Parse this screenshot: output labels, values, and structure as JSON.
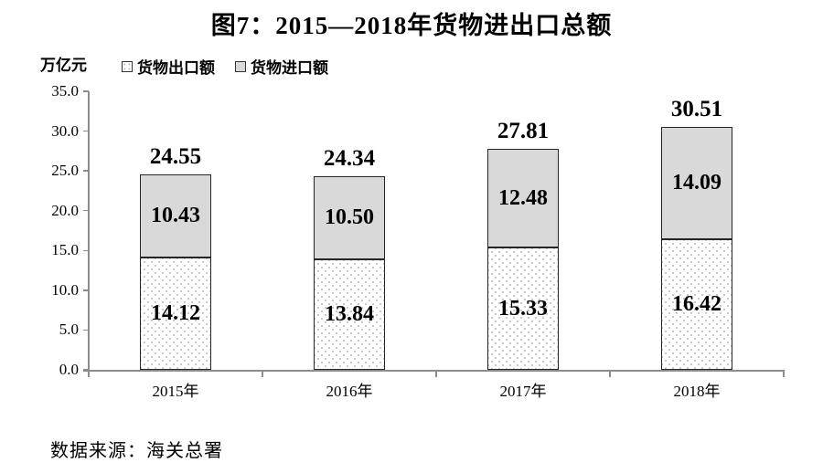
{
  "page": {
    "title": "图7：2015—2018年货物进出口总额",
    "unit_label": "万亿元",
    "source": "数据来源：海关总署"
  },
  "legend": {
    "items": [
      {
        "label": "货物出口额",
        "swatch": "dotted-white-square"
      },
      {
        "label": "货物进口额",
        "swatch": "light-gray-square"
      }
    ]
  },
  "chart_data": {
    "type": "bar",
    "stacked": true,
    "title": "图7：2015—2018年货物进出口总额",
    "unit": "万亿元",
    "categories": [
      "2015年",
      "2016年",
      "2017年",
      "2018年"
    ],
    "series": [
      {
        "name": "货物出口额",
        "style": "dotted-white",
        "values": [
          14.12,
          13.84,
          15.33,
          16.42
        ]
      },
      {
        "name": "货物进口额",
        "style": "light-gray",
        "values": [
          10.43,
          10.5,
          12.48,
          14.09
        ]
      }
    ],
    "totals": [
      24.55,
      24.34,
      27.81,
      30.51
    ],
    "ylim": [
      0,
      35
    ],
    "ytick_step": 5,
    "yticks": [
      "0.0",
      "5.0",
      "10.0",
      "15.0",
      "20.0",
      "25.0",
      "30.0",
      "35.0"
    ],
    "grid": false,
    "legend_position": "top-left"
  },
  "colors": {
    "import_fill": "#d9d9d9",
    "export_dot": "#b9b9b9",
    "bar_border": "#262626",
    "axis": "#8c8c8c",
    "text": "#000000"
  }
}
